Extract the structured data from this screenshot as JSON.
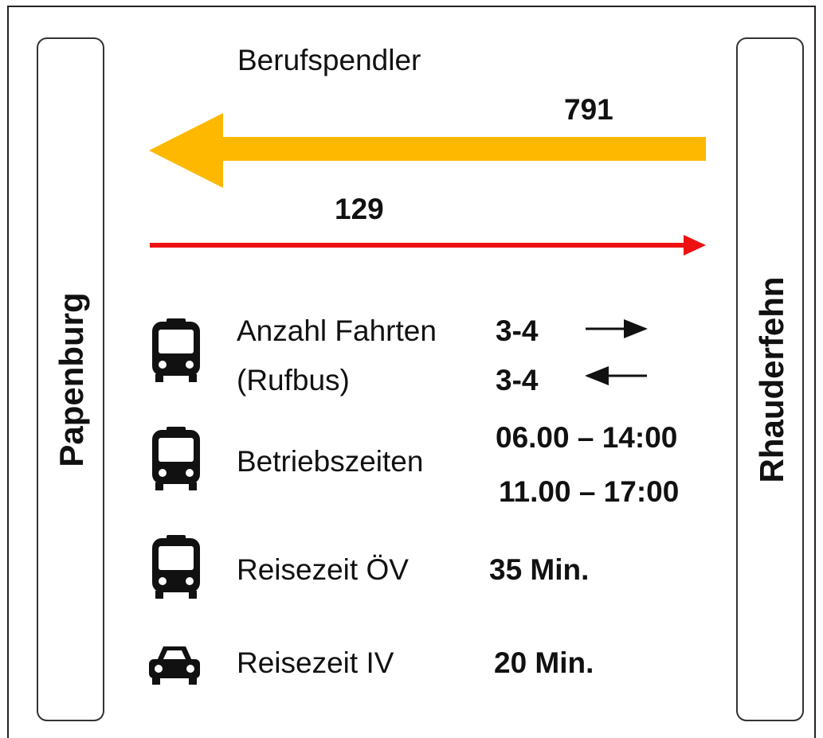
{
  "left_place": "Papenburg",
  "right_place": "Rhauderfehn",
  "title": "Berufspendler",
  "flows": [
    {
      "value": 791
    },
    {
      "value": 129
    }
  ],
  "rows": [
    {
      "label": [
        "Anzahl Fahrten",
        "(Rufbus)"
      ],
      "values": [
        "3-4",
        "3-4"
      ]
    },
    {
      "label": [
        "Betriebszeiten"
      ],
      "values": [
        "06.00 – 14:00",
        "11.00 – 17:00"
      ]
    },
    {
      "label": [
        "Reisezeit ÖV"
      ],
      "values": [
        "35 Min."
      ]
    },
    {
      "label": [
        "Reisezeit IV"
      ],
      "values": [
        "20 Min."
      ]
    }
  ]
}
